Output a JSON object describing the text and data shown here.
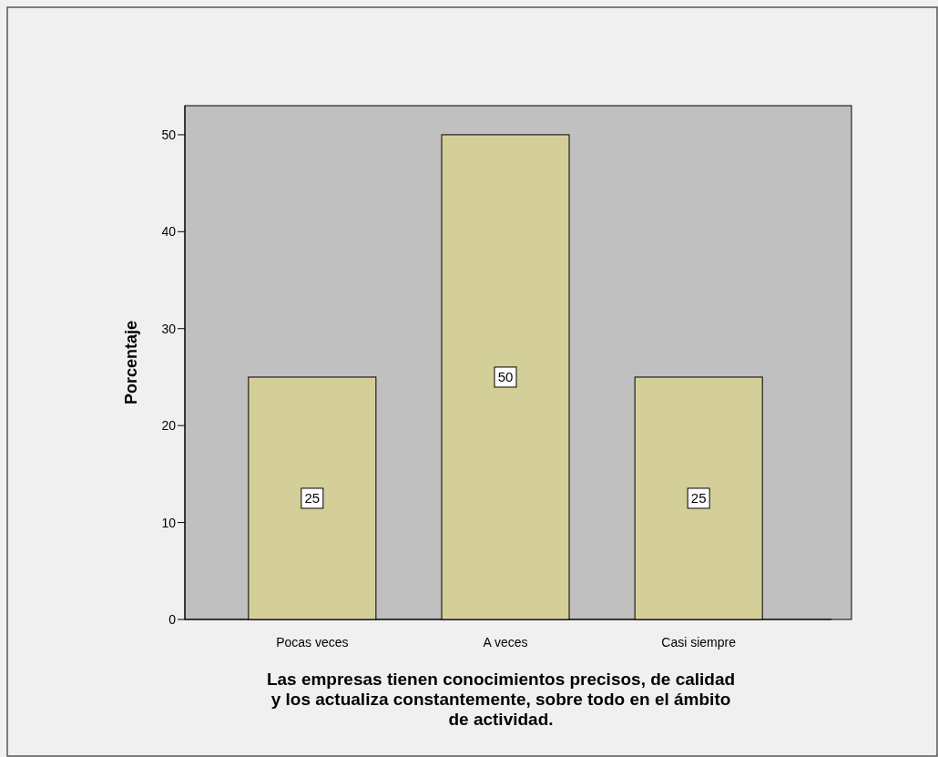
{
  "chart_data": {
    "type": "bar",
    "xlabel": "Las empresas tienen conocimientos precisos, de calidad y los actualiza constantemente, sobre todo en el ámbito de actividad.",
    "ylabel": "Porcentaje",
    "categories": [
      "Pocas veces",
      "A veces",
      "Casi siempre"
    ],
    "values": [
      25,
      50,
      25
    ],
    "color": "#d4cf98",
    "ylim": [
      0,
      53
    ],
    "yticks": [
      0,
      10,
      20,
      30,
      40,
      50
    ],
    "data_labels": true
  }
}
